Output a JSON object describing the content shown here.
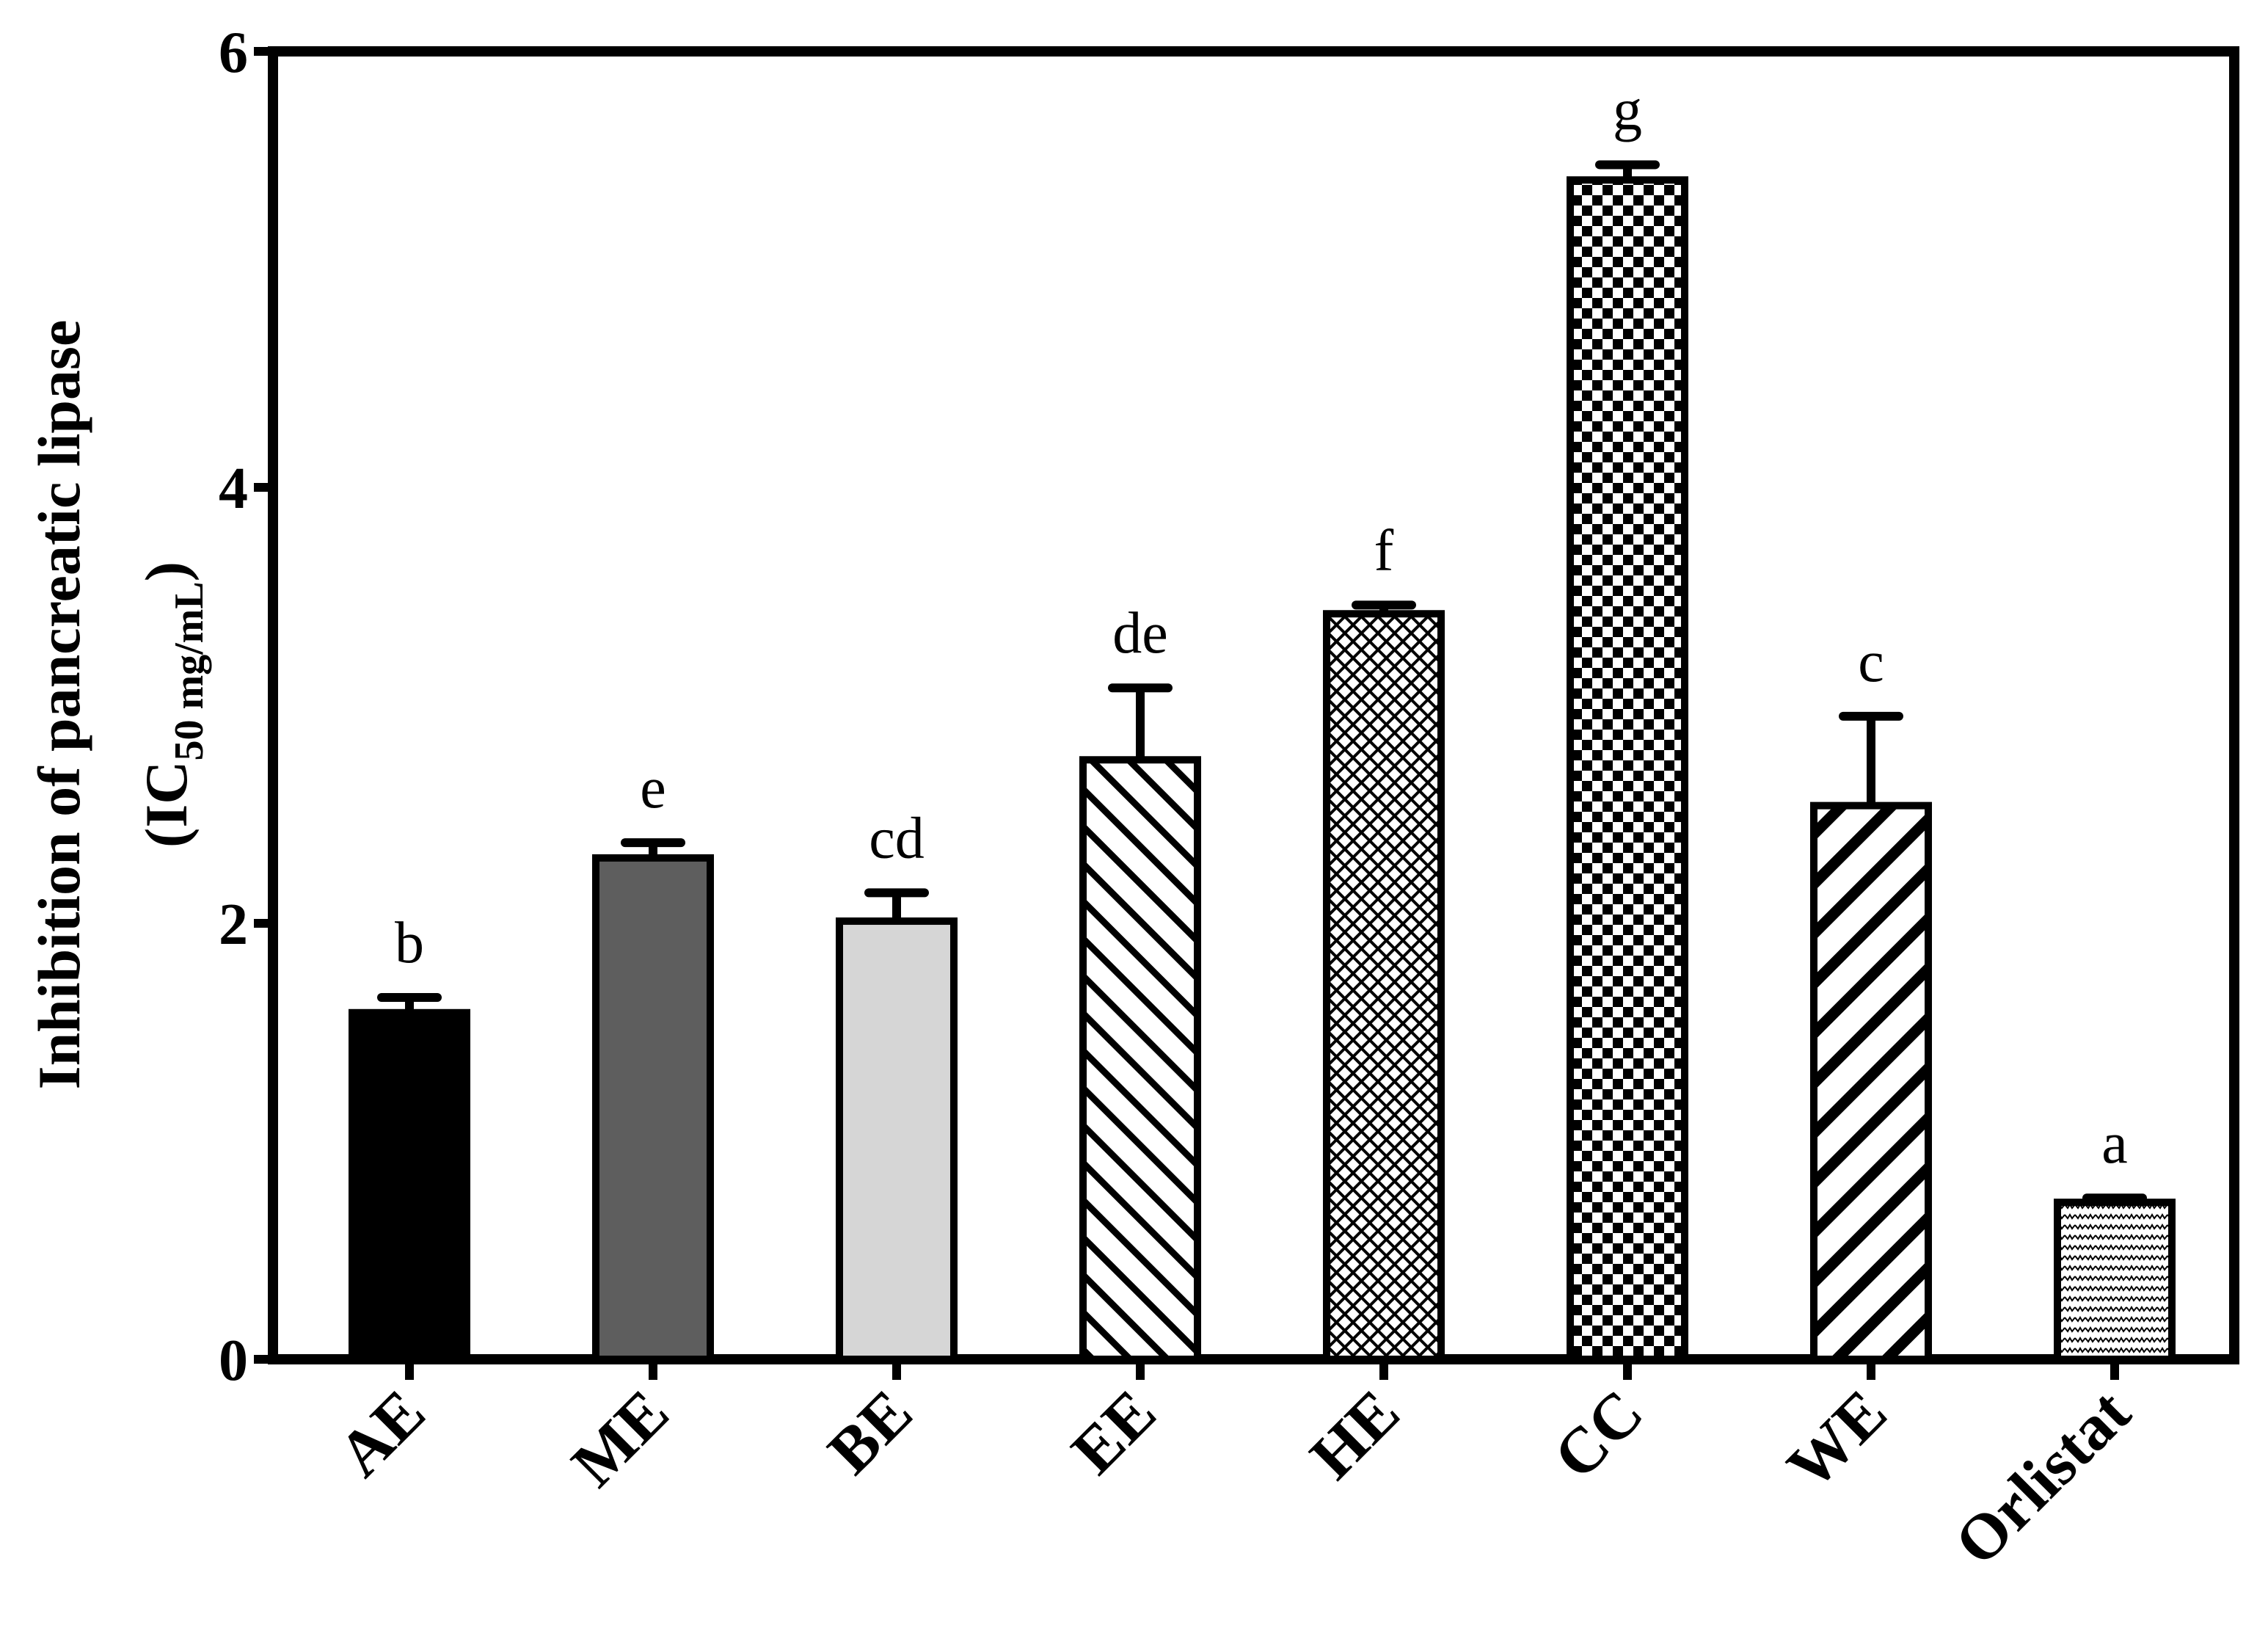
{
  "chart_data": {
    "type": "bar",
    "ylabel_line1": "Inhibition of pancreatic lipase",
    "ylabel_line2_prefix": "(IC",
    "ylabel_line2_sub": "50 mg/mL",
    "ylabel_line2_suffix": ")",
    "ylim": [
      0,
      6
    ],
    "yticks": [
      "0",
      "2",
      "4",
      "6"
    ],
    "grid": false,
    "categories": [
      "AE",
      "ME",
      "BE",
      "EE",
      "HE",
      "CC",
      "WE",
      "Orlistat"
    ],
    "values": [
      1.59,
      2.3,
      2.01,
      2.75,
      3.42,
      5.41,
      2.54,
      0.72
    ],
    "errors": [
      0.07,
      0.07,
      0.13,
      0.33,
      0.04,
      0.07,
      0.41,
      0.02
    ],
    "significance": [
      "b",
      "e",
      "cd",
      "de",
      "f",
      "g",
      "c",
      "a"
    ],
    "fills": [
      "solid-black",
      "solid-darkgray",
      "solid-lightgray",
      "hatch-backslash",
      "crosshatch-fine",
      "checkerboard",
      "hatch-slash",
      "dots-fine"
    ],
    "colors": {
      "black": "#000000",
      "dark_gray": "#5e5e5e",
      "light_gray": "#d6d6d6",
      "white": "#ffffff"
    }
  }
}
